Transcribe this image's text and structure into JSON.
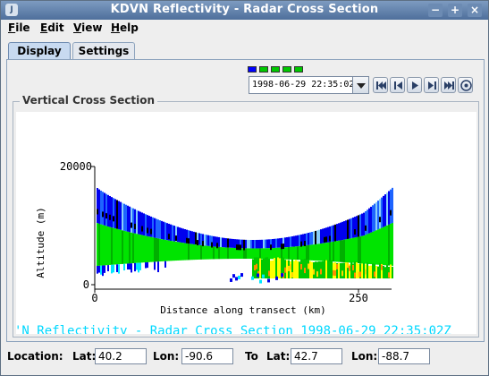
{
  "window": {
    "title": "KDVN Reflectivity - Radar Cross Section"
  },
  "menu": [
    {
      "label": "File",
      "mnemonic": "F",
      "rest": "ile"
    },
    {
      "label": "Edit",
      "mnemonic": "E",
      "rest": "dit"
    },
    {
      "label": "View",
      "mnemonic": "V",
      "rest": "iew"
    },
    {
      "label": "Help",
      "mnemonic": "H",
      "rest": "elp"
    }
  ],
  "tabs": [
    {
      "label": "Display",
      "active": true
    },
    {
      "label": "Settings",
      "active": false
    }
  ],
  "time": {
    "current": "1998-06-29 22:35:02Z",
    "segments": [
      "blue",
      "green",
      "green",
      "green",
      "green"
    ],
    "segment_colors": {
      "blue": "#0000ff",
      "green": "#00c800"
    }
  },
  "animation_controls": [
    "first-frame-icon",
    "step-back-icon",
    "play-icon",
    "step-forward-icon",
    "last-frame-icon",
    "settings-icon"
  ],
  "section": {
    "label": "Vertical Cross Section"
  },
  "plot": {
    "ytick_top": "20000",
    "ytick_bottom": "0",
    "xtick_left": "0",
    "xtick_right": "250",
    "ylabel": "Altitude (m)",
    "xlabel": "Distance along transect (km)",
    "banner": "'N Reflectivity - Radar Cross Section 1998-06-29 22:35:02Z"
  },
  "chart_data": {
    "type": "heatmap",
    "xlabel": "Distance along transect (km)",
    "ylabel": "Altitude (m)",
    "xticks": [
      0,
      250
    ],
    "yticks": [
      0,
      20000
    ],
    "xlim": [
      0,
      270
    ],
    "ylim": [
      0,
      20000
    ]
  },
  "location": {
    "label": "Location:",
    "from_lat_label": "Lat:",
    "from_lat": "40.2",
    "from_lon_label": "Lon:",
    "from_lon": "-90.6",
    "to_label": "To",
    "to_lat_label": "Lat:",
    "to_lat": "42.7",
    "to_lon_label": "Lon:",
    "to_lon": "-88.7"
  }
}
